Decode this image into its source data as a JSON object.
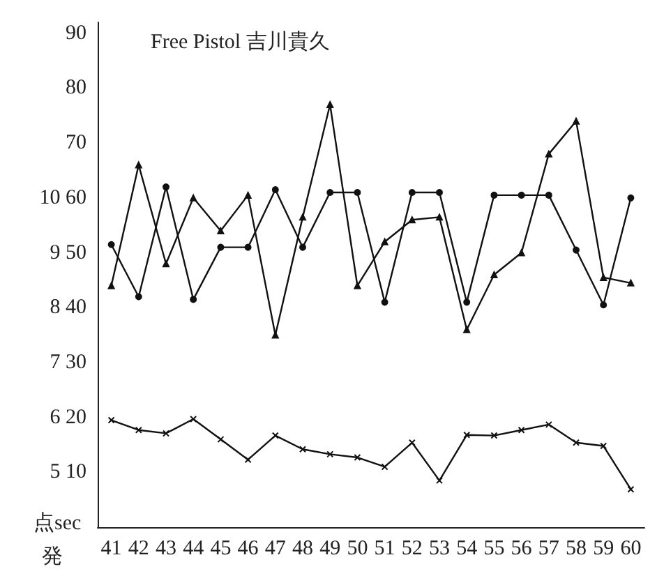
{
  "chart_data": {
    "type": "line",
    "title": "Free Pistol 吉川貴久",
    "xlabel": "発",
    "ylabel": "点sec",
    "categories": [
      "41",
      "42",
      "43",
      "44",
      "45",
      "46",
      "47",
      "48",
      "49",
      "50",
      "51",
      "52",
      "53",
      "54",
      "55",
      "56",
      "57",
      "58",
      "59",
      "60"
    ],
    "series": [
      {
        "color": "#111111",
        "marker": "triangle",
        "values": [
          44,
          66,
          48,
          60,
          54,
          60.5,
          35,
          56.5,
          77,
          44,
          52,
          56,
          56.5,
          36,
          46,
          50,
          68,
          74,
          45.5,
          44.5
        ]
      },
      {
        "color": "#111111",
        "marker": "circle",
        "values": [
          51.5,
          42,
          62,
          41.5,
          51,
          51,
          61.5,
          51,
          61,
          61,
          41,
          61,
          61,
          41,
          60.5,
          60.5,
          60.5,
          50.5,
          40.5,
          60
        ]
      },
      {
        "color": "#111111",
        "marker": "cross",
        "values": [
          19.5,
          17.7,
          17.1,
          19.7,
          16,
          12.3,
          16.7,
          14.2,
          13.3,
          12.7,
          11,
          15.4,
          8.5,
          16.8,
          16.7,
          17.7,
          18.7,
          15.4,
          14.8,
          6.9
        ]
      }
    ],
    "ylim": [
      0,
      92
    ],
    "yticks": [
      {
        "value": 10,
        "label": "5 10"
      },
      {
        "value": 20,
        "label": "6 20"
      },
      {
        "value": 30,
        "label": "7 30"
      },
      {
        "value": 40,
        "label": "8 40"
      },
      {
        "value": 50,
        "label": "9 50"
      },
      {
        "value": 60,
        "label": "10 60"
      },
      70,
      80,
      90
    ],
    "grid": false,
    "line_style": "solid"
  }
}
